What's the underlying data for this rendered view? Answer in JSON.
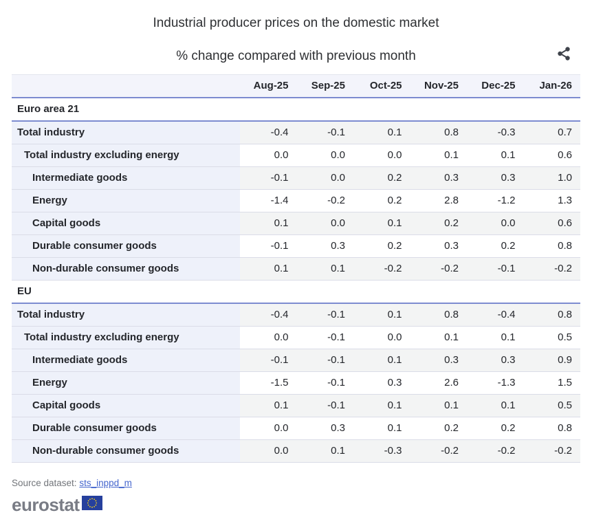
{
  "header": {
    "title": "Industrial producer prices on the domestic market",
    "subtitle": "% change compared with previous month"
  },
  "colors": {
    "header_band": "#f3f4fb",
    "label_column": "#eef1fa",
    "stripe": "#f3f4f4",
    "section_border": "#7c8bd0",
    "row_divider": "#dadce7",
    "link": "#4465cd",
    "logo_gray": "#797c85",
    "flag_navy": "#26409d",
    "flag_star": "#ffd617",
    "share_icon": "#3f434b"
  },
  "chart_data": {
    "type": "table",
    "title": "Industrial producer prices on the domestic market",
    "subtitle": "% change compared with previous month",
    "columns": [
      "Aug-25",
      "Sep-25",
      "Oct-25",
      "Nov-25",
      "Dec-25",
      "Jan-26"
    ],
    "sections": [
      {
        "name": "Euro area 21",
        "rows": [
          {
            "label": "Total industry",
            "indent": 0,
            "values": [
              "-0.4",
              "-0.1",
              "0.1",
              "0.8",
              "-0.3",
              "0.7"
            ]
          },
          {
            "label": "Total industry excluding energy",
            "indent": 1,
            "values": [
              "0.0",
              "0.0",
              "0.0",
              "0.1",
              "0.1",
              "0.6"
            ]
          },
          {
            "label": "Intermediate goods",
            "indent": 2,
            "values": [
              "-0.1",
              "0.0",
              "0.2",
              "0.3",
              "0.3",
              "1.0"
            ]
          },
          {
            "label": "Energy",
            "indent": 2,
            "values": [
              "-1.4",
              "-0.2",
              "0.2",
              "2.8",
              "-1.2",
              "1.3"
            ]
          },
          {
            "label": "Capital goods",
            "indent": 2,
            "values": [
              "0.1",
              "0.0",
              "0.1",
              "0.2",
              "0.0",
              "0.6"
            ]
          },
          {
            "label": "Durable consumer goods",
            "indent": 2,
            "values": [
              "-0.1",
              "0.3",
              "0.2",
              "0.3",
              "0.2",
              "0.8"
            ]
          },
          {
            "label": "Non-durable consumer goods",
            "indent": 2,
            "values": [
              "0.1",
              "0.1",
              "-0.2",
              "-0.2",
              "-0.1",
              "-0.2"
            ]
          }
        ]
      },
      {
        "name": "EU",
        "rows": [
          {
            "label": "Total industry",
            "indent": 0,
            "values": [
              "-0.4",
              "-0.1",
              "0.1",
              "0.8",
              "-0.4",
              "0.8"
            ]
          },
          {
            "label": "Total industry excluding energy",
            "indent": 1,
            "values": [
              "0.0",
              "-0.1",
              "0.0",
              "0.1",
              "0.1",
              "0.5"
            ]
          },
          {
            "label": "Intermediate goods",
            "indent": 2,
            "values": [
              "-0.1",
              "-0.1",
              "0.1",
              "0.3",
              "0.3",
              "0.9"
            ]
          },
          {
            "label": "Energy",
            "indent": 2,
            "values": [
              "-1.5",
              "-0.1",
              "0.3",
              "2.6",
              "-1.3",
              "1.5"
            ]
          },
          {
            "label": "Capital goods",
            "indent": 2,
            "values": [
              "0.1",
              "-0.1",
              "0.1",
              "0.1",
              "0.1",
              "0.5"
            ]
          },
          {
            "label": "Durable consumer goods",
            "indent": 2,
            "values": [
              "0.0",
              "0.3",
              "0.1",
              "0.2",
              "0.2",
              "0.8"
            ]
          },
          {
            "label": "Non-durable consumer goods",
            "indent": 2,
            "values": [
              "0.0",
              "0.1",
              "-0.3",
              "-0.2",
              "-0.2",
              "-0.2"
            ]
          }
        ]
      }
    ]
  },
  "footer": {
    "source_label": "Source dataset:",
    "source_link": "sts_inppd_m"
  },
  "logo": {
    "wordmark": "eurostat"
  }
}
